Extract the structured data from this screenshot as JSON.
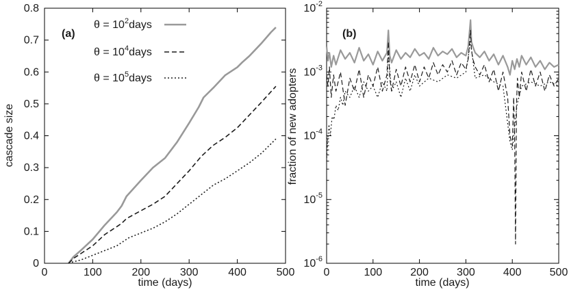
{
  "chart_data": [
    {
      "type": "line",
      "panel_label": "(a)",
      "xlabel": "time (days)",
      "ylabel": "cascade size",
      "xlim": [
        0,
        500
      ],
      "ylim": [
        0,
        0.8
      ],
      "xticks": [
        "0",
        "100",
        "200",
        "300",
        "400",
        "500"
      ],
      "yticks": [
        "0",
        "0.1",
        "0.2",
        "0.3",
        "0.4",
        "0.5",
        "0.6",
        "0.7",
        "0.8"
      ],
      "grid": false,
      "legend_position": "top-right",
      "series": [
        {
          "name": "θ = 10²days",
          "label_prefix": "θ = 10",
          "label_exp": "2",
          "label_suffix": "days",
          "color": "#999999",
          "style": "solid",
          "x": [
            50,
            60,
            75,
            100,
            125,
            150,
            160,
            170,
            200,
            225,
            250,
            275,
            300,
            320,
            330,
            350,
            375,
            390,
            400,
            410,
            425,
            450,
            470,
            480
          ],
          "y": [
            0,
            0.02,
            0.04,
            0.075,
            0.12,
            0.16,
            0.18,
            0.21,
            0.26,
            0.3,
            0.33,
            0.38,
            0.44,
            0.49,
            0.52,
            0.55,
            0.59,
            0.605,
            0.615,
            0.63,
            0.65,
            0.69,
            0.725,
            0.74
          ]
        },
        {
          "name": "θ = 10⁴days",
          "label_prefix": "θ = 10",
          "label_exp": "4",
          "label_suffix": "days",
          "color": "#1a1a1a",
          "style": "dashed",
          "x": [
            50,
            60,
            75,
            100,
            125,
            150,
            160,
            170,
            200,
            225,
            250,
            275,
            300,
            325,
            350,
            375,
            400,
            425,
            450,
            480
          ],
          "y": [
            0,
            0.015,
            0.03,
            0.055,
            0.09,
            0.115,
            0.125,
            0.14,
            0.165,
            0.185,
            0.21,
            0.25,
            0.29,
            0.335,
            0.37,
            0.395,
            0.425,
            0.465,
            0.505,
            0.555
          ]
        },
        {
          "name": "θ = 10⁵days",
          "label_prefix": "θ = 10",
          "label_exp": "5",
          "label_suffix": "days",
          "color": "#1a1a1a",
          "style": "dotted",
          "x": [
            50,
            60,
            75,
            100,
            125,
            150,
            160,
            175,
            200,
            225,
            250,
            275,
            300,
            325,
            350,
            375,
            400,
            425,
            450,
            480
          ],
          "y": [
            0,
            0.005,
            0.01,
            0.025,
            0.04,
            0.055,
            0.065,
            0.08,
            0.095,
            0.11,
            0.13,
            0.155,
            0.185,
            0.215,
            0.245,
            0.265,
            0.29,
            0.315,
            0.345,
            0.39
          ]
        }
      ]
    },
    {
      "type": "line",
      "panel_label": "(b)",
      "xlabel": "time (days)",
      "ylabel": "fraction of new adopters",
      "xlim": [
        0,
        500
      ],
      "ylim_log10": [
        -6,
        -2
      ],
      "yscale": "log",
      "xticks": [
        "0",
        "100",
        "200",
        "300",
        "400",
        "500"
      ],
      "yticks": [
        {
          "base": "10",
          "exp": "-2"
        },
        {
          "base": "10",
          "exp": "-3"
        },
        {
          "base": "10",
          "exp": "-4"
        },
        {
          "base": "10",
          "exp": "-5"
        },
        {
          "base": "10",
          "exp": "-6"
        }
      ],
      "grid": false,
      "series": [
        {
          "color": "#999999",
          "style": "solid",
          "x": [
            0,
            3,
            6,
            10,
            15,
            20,
            30,
            40,
            50,
            60,
            70,
            80,
            90,
            100,
            110,
            120,
            130,
            133,
            136,
            140,
            150,
            160,
            170,
            180,
            190,
            200,
            210,
            220,
            230,
            240,
            250,
            260,
            270,
            280,
            290,
            300,
            305,
            310,
            312,
            315,
            320,
            330,
            340,
            350,
            360,
            370,
            380,
            390,
            395,
            400,
            405,
            410,
            415,
            420,
            430,
            440,
            450,
            460,
            470,
            480,
            490,
            500
          ],
          "y": [
            0.0025,
            0.0015,
            0.002,
            0.0012,
            0.0018,
            0.0013,
            0.0022,
            0.0016,
            0.002,
            0.0014,
            0.0024,
            0.0015,
            0.0019,
            0.0013,
            0.0021,
            0.0015,
            0.002,
            0.0045,
            0.0018,
            0.0014,
            0.0022,
            0.0016,
            0.002,
            0.0017,
            0.0023,
            0.0018,
            0.002,
            0.0016,
            0.0024,
            0.0018,
            0.0021,
            0.0019,
            0.0023,
            0.0017,
            0.002,
            0.0018,
            0.0025,
            0.0065,
            0.003,
            0.0025,
            0.002,
            0.0017,
            0.0021,
            0.0015,
            0.0019,
            0.0013,
            0.0018,
            0.0012,
            0.0009,
            0.0015,
            0.0011,
            0.0016,
            0.0012,
            0.0018,
            0.0013,
            0.0017,
            0.0012,
            0.0015,
            0.0011,
            0.0014,
            0.0012,
            0.0013
          ]
        },
        {
          "color": "#1a1a1a",
          "style": "dashed",
          "x": [
            0,
            3,
            6,
            10,
            15,
            20,
            30,
            40,
            50,
            60,
            70,
            80,
            90,
            100,
            110,
            120,
            130,
            133,
            136,
            140,
            150,
            160,
            170,
            180,
            190,
            200,
            210,
            220,
            230,
            240,
            250,
            260,
            270,
            280,
            290,
            300,
            305,
            310,
            312,
            315,
            320,
            330,
            340,
            350,
            360,
            370,
            380,
            390,
            395,
            400,
            403,
            405,
            407,
            409,
            411,
            415,
            420,
            430,
            440,
            450,
            460,
            470,
            480,
            490,
            500
          ],
          "y": [
            0.0009,
            0.0006,
            0.0012,
            0.0004,
            0.0009,
            0.0005,
            0.001,
            0.0003,
            0.0008,
            0.0005,
            0.0011,
            0.0004,
            0.0009,
            0.0006,
            0.0012,
            0.0005,
            0.0009,
            0.003,
            0.0008,
            0.0005,
            0.0011,
            0.0006,
            0.0012,
            0.0007,
            0.0013,
            0.0007,
            0.0012,
            0.0008,
            0.0014,
            0.0009,
            0.0013,
            0.001,
            0.0015,
            0.0009,
            0.0014,
            0.0011,
            0.0016,
            0.0045,
            0.0022,
            0.0016,
            0.0012,
            0.0009,
            0.0013,
            0.0007,
            0.0011,
            0.0005,
            0.001,
            0.0004,
            0.0001,
            7e-05,
            0.0004,
            0.0001,
            2e-06,
            0.0003,
            0.0008,
            0.0004,
            0.001,
            0.0005,
            0.0011,
            0.0006,
            0.001,
            0.0005,
            0.0009,
            0.0006,
            0.0008
          ]
        },
        {
          "color": "#1a1a1a",
          "style": "dotted",
          "x": [
            0,
            2,
            5,
            8,
            12,
            16,
            20,
            25,
            30,
            35,
            40,
            50,
            60,
            70,
            80,
            90,
            100,
            110,
            120,
            130,
            133,
            140,
            150,
            160,
            170,
            180,
            190,
            200,
            220,
            240,
            260,
            280,
            300,
            310,
            320,
            340,
            360,
            380,
            395,
            400,
            410,
            420,
            440,
            460,
            480,
            500
          ],
          "y": [
            4e-05,
            8e-05,
            0.00015,
            0.0001,
            0.0002,
            0.00018,
            0.0003,
            0.00025,
            0.0004,
            0.0003,
            0.0005,
            0.0004,
            0.0006,
            0.0004,
            0.0007,
            0.0005,
            0.0006,
            0.0004,
            0.0007,
            0.0005,
            0.002,
            0.0005,
            0.0007,
            0.0004,
            0.0008,
            0.0005,
            0.0009,
            0.0006,
            0.0008,
            0.0007,
            0.0009,
            0.0008,
            0.001,
            0.003,
            0.0008,
            0.0009,
            0.0007,
            0.0006,
            8e-05,
            6e-05,
            0.0003,
            0.0006,
            0.0007,
            0.0006,
            0.0007,
            0.0006
          ]
        }
      ]
    }
  ]
}
